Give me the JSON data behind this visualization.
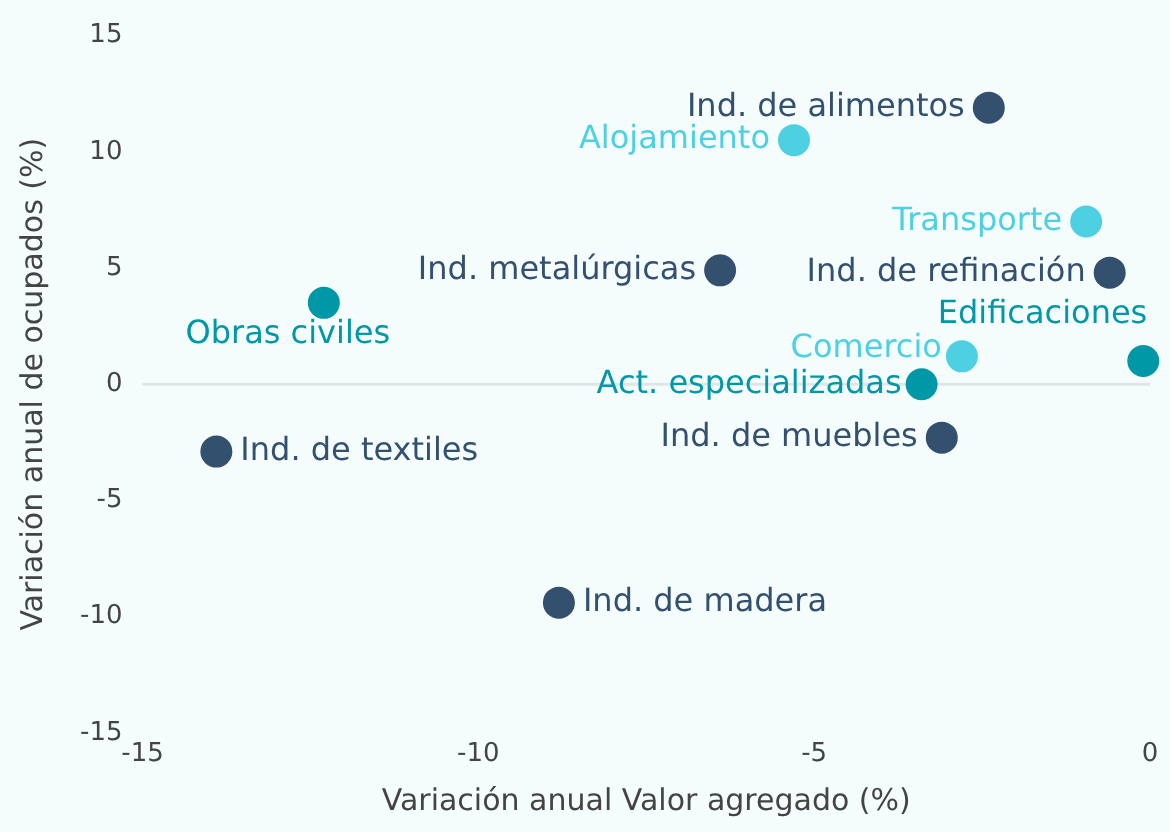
{
  "chart_data": {
    "type": "scatter",
    "xlabel": "Variación anual Valor agregado (%)",
    "ylabel": "Variación anual de ocupados (%)",
    "xlim": [
      -15,
      0
    ],
    "xticks": [
      -15,
      -10,
      -5,
      0
    ],
    "ylim": [
      -15,
      15
    ],
    "yticks": [
      -15,
      -10,
      -5,
      0,
      5,
      10,
      15
    ],
    "grid": false,
    "legend": false,
    "marker": "circle",
    "ref_lines": [
      {
        "axis": "y",
        "value": 0,
        "color": "#e0e6e6"
      }
    ],
    "series": [
      {
        "name": "Ind. de alimentos",
        "color": "#34506f",
        "x": [
          -2.4
        ],
        "values": [
          11.9
        ]
      },
      {
        "name": "Alojamiento",
        "color": "#4dd0e1",
        "x": [
          -5.3
        ],
        "values": [
          10.5
        ]
      },
      {
        "name": "Transporte",
        "color": "#4dd0e1",
        "x": [
          -0.95
        ],
        "values": [
          7.0
        ]
      },
      {
        "name": "Ind. de refinación",
        "color": "#34506f",
        "x": [
          -0.6
        ],
        "values": [
          4.8
        ]
      },
      {
        "name": "Ind. metalúrgicas",
        "color": "#34506f",
        "x": [
          -6.4
        ],
        "values": [
          4.9
        ]
      },
      {
        "name": "Obras civiles",
        "color": "#0097a7",
        "x": [
          -12.3
        ],
        "values": [
          3.5
        ]
      },
      {
        "name": "Edificaciones",
        "color": "#0097a7",
        "x": [
          -0.1
        ],
        "values": [
          1.0
        ]
      },
      {
        "name": "Comercio",
        "color": "#4dd0e1",
        "x": [
          -2.8
        ],
        "values": [
          1.2
        ]
      },
      {
        "name": "Act. especializadas",
        "color": "#0097a7",
        "x": [
          -3.4
        ],
        "values": [
          0.0
        ]
      },
      {
        "name": "Ind. de muebles",
        "color": "#34506f",
        "x": [
          -3.1
        ],
        "values": [
          -2.3
        ]
      },
      {
        "name": "Ind. de textiles",
        "color": "#34506f",
        "x": [
          -13.9
        ],
        "values": [
          -2.9
        ]
      },
      {
        "name": "Ind. de madera",
        "color": "#34506f",
        "x": [
          -8.8
        ],
        "values": [
          -9.4
        ]
      }
    ]
  }
}
